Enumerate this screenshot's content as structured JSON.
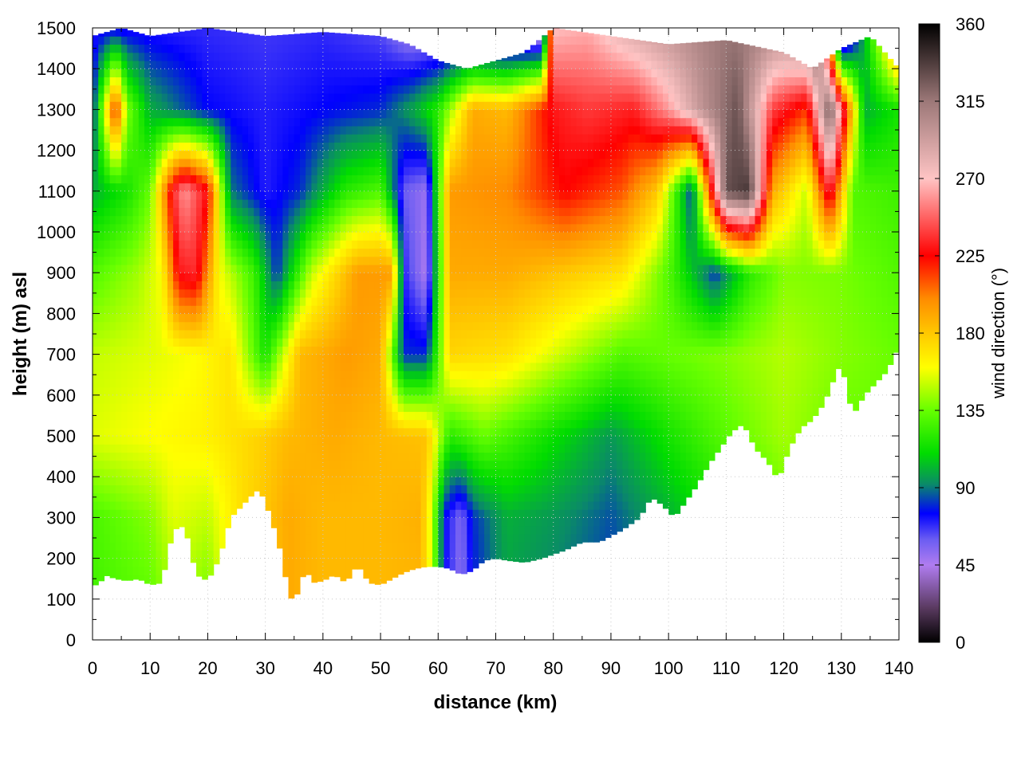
{
  "chart_data": {
    "type": "heatmap",
    "title": "",
    "xlabel": "distance (km)",
    "ylabel": "height (m) asl",
    "xlim": [
      0,
      140
    ],
    "ylim": [
      0,
      1500
    ],
    "xticks": [
      0,
      10,
      20,
      30,
      40,
      50,
      60,
      70,
      80,
      90,
      100,
      110,
      120,
      130,
      140
    ],
    "yticks": [
      0,
      100,
      200,
      300,
      400,
      500,
      600,
      700,
      800,
      900,
      1000,
      1100,
      1200,
      1300,
      1400,
      1500
    ],
    "grid": true,
    "colorbar": {
      "label": "wind direction (°)",
      "range": [
        0,
        360
      ],
      "ticks": [
        0,
        45,
        90,
        135,
        180,
        225,
        270,
        315,
        360
      ],
      "stops": [
        {
          "v": 0,
          "c": "#000000"
        },
        {
          "v": 20,
          "c": "#5a3a60"
        },
        {
          "v": 45,
          "c": "#b07cf0"
        },
        {
          "v": 60,
          "c": "#6a5cf2"
        },
        {
          "v": 75,
          "c": "#0000ff"
        },
        {
          "v": 92,
          "c": "#0a8a68"
        },
        {
          "v": 110,
          "c": "#00dc00"
        },
        {
          "v": 135,
          "c": "#66ff00"
        },
        {
          "v": 160,
          "c": "#ffff00"
        },
        {
          "v": 180,
          "c": "#ffc800"
        },
        {
          "v": 200,
          "c": "#ff8c00"
        },
        {
          "v": 225,
          "c": "#ff0000"
        },
        {
          "v": 270,
          "c": "#ffc4c4"
        },
        {
          "v": 315,
          "c": "#9c7878"
        },
        {
          "v": 360,
          "c": "#000000"
        }
      ]
    },
    "ground_height": [
      [
        0,
        140
      ],
      [
        1,
        130
      ],
      [
        2,
        160
      ],
      [
        4,
        150
      ],
      [
        6,
        145
      ],
      [
        8,
        150
      ],
      [
        10,
        135
      ],
      [
        12,
        140
      ],
      [
        14,
        270
      ],
      [
        16,
        280
      ],
      [
        18,
        160
      ],
      [
        20,
        145
      ],
      [
        22,
        200
      ],
      [
        24,
        300
      ],
      [
        26,
        330
      ],
      [
        28,
        360
      ],
      [
        29,
        370
      ],
      [
        31,
        300
      ],
      [
        33,
        200
      ],
      [
        34,
        110
      ],
      [
        35,
        95
      ],
      [
        36,
        130
      ],
      [
        37,
        180
      ],
      [
        38,
        140
      ],
      [
        40,
        145
      ],
      [
        42,
        160
      ],
      [
        44,
        140
      ],
      [
        46,
        185
      ],
      [
        48,
        140
      ],
      [
        50,
        135
      ],
      [
        52,
        150
      ],
      [
        54,
        165
      ],
      [
        56,
        175
      ],
      [
        58,
        180
      ],
      [
        60,
        180
      ],
      [
        62,
        175
      ],
      [
        64,
        160
      ],
      [
        66,
        170
      ],
      [
        68,
        195
      ],
      [
        70,
        200
      ],
      [
        72,
        195
      ],
      [
        75,
        190
      ],
      [
        78,
        200
      ],
      [
        80,
        210
      ],
      [
        82,
        220
      ],
      [
        85,
        240
      ],
      [
        88,
        240
      ],
      [
        92,
        270
      ],
      [
        95,
        300
      ],
      [
        97,
        350
      ],
      [
        99,
        330
      ],
      [
        101,
        300
      ],
      [
        103,
        340
      ],
      [
        105,
        380
      ],
      [
        107,
        430
      ],
      [
        109,
        470
      ],
      [
        111,
        510
      ],
      [
        113,
        530
      ],
      [
        115,
        470
      ],
      [
        117,
        440
      ],
      [
        118,
        420
      ],
      [
        119,
        390
      ],
      [
        121,
        470
      ],
      [
        123,
        520
      ],
      [
        125,
        540
      ],
      [
        127,
        580
      ],
      [
        129,
        650
      ],
      [
        130,
        680
      ],
      [
        131,
        610
      ],
      [
        132,
        550
      ],
      [
        134,
        600
      ],
      [
        136,
        630
      ],
      [
        138,
        660
      ],
      [
        140,
        720
      ]
    ],
    "top_height": [
      [
        0,
        1480
      ],
      [
        5,
        1500
      ],
      [
        10,
        1480
      ],
      [
        20,
        1500
      ],
      [
        30,
        1480
      ],
      [
        40,
        1490
      ],
      [
        50,
        1480
      ],
      [
        55,
        1460
      ],
      [
        60,
        1420
      ],
      [
        65,
        1400
      ],
      [
        70,
        1420
      ],
      [
        75,
        1440
      ],
      [
        80,
        1500
      ],
      [
        90,
        1480
      ],
      [
        100,
        1460
      ],
      [
        110,
        1470
      ],
      [
        120,
        1440
      ],
      [
        125,
        1400
      ],
      [
        130,
        1450
      ],
      [
        135,
        1480
      ],
      [
        140,
        1400
      ]
    ],
    "layers": [
      {
        "h": 0,
        "wd": [
          [
            0,
            125
          ],
          [
            10,
            130
          ],
          [
            12,
            135
          ],
          [
            16,
            145
          ],
          [
            20,
            130
          ],
          [
            24,
            170
          ],
          [
            30,
            175
          ],
          [
            34,
            190
          ],
          [
            40,
            185
          ],
          [
            50,
            185
          ],
          [
            57,
            185
          ],
          [
            59,
            150
          ],
          [
            61,
            75
          ],
          [
            64,
            50
          ],
          [
            66,
            75
          ],
          [
            72,
            95
          ],
          [
            80,
            88
          ],
          [
            90,
            80
          ],
          [
            100,
            92
          ],
          [
            110,
            110
          ],
          [
            120,
            130
          ],
          [
            130,
            120
          ],
          [
            140,
            130
          ]
        ]
      },
      {
        "h": 300,
        "wd": [
          [
            0,
            128
          ],
          [
            10,
            140
          ],
          [
            14,
            155
          ],
          [
            20,
            150
          ],
          [
            26,
            172
          ],
          [
            34,
            190
          ],
          [
            40,
            185
          ],
          [
            50,
            185
          ],
          [
            57,
            188
          ],
          [
            59,
            150
          ],
          [
            61,
            75
          ],
          [
            64,
            55
          ],
          [
            66,
            80
          ],
          [
            72,
            100
          ],
          [
            80,
            95
          ],
          [
            90,
            85
          ],
          [
            100,
            100
          ],
          [
            110,
            118
          ],
          [
            120,
            135
          ],
          [
            130,
            125
          ],
          [
            140,
            130
          ]
        ]
      },
      {
        "h": 500,
        "wd": [
          [
            0,
            155
          ],
          [
            10,
            160
          ],
          [
            20,
            165
          ],
          [
            28,
            175
          ],
          [
            34,
            185
          ],
          [
            42,
            190
          ],
          [
            50,
            185
          ],
          [
            58,
            182
          ],
          [
            62,
            120
          ],
          [
            68,
            135
          ],
          [
            80,
            112
          ],
          [
            90,
            95
          ],
          [
            100,
            115
          ],
          [
            110,
            132
          ],
          [
            120,
            145
          ],
          [
            130,
            135
          ],
          [
            140,
            135
          ]
        ]
      },
      {
        "h": 700,
        "wd": [
          [
            0,
            150
          ],
          [
            10,
            155
          ],
          [
            18,
            160
          ],
          [
            24,
            170
          ],
          [
            30,
            115
          ],
          [
            36,
            185
          ],
          [
            44,
            195
          ],
          [
            50,
            190
          ],
          [
            54,
            80
          ],
          [
            58,
            80
          ],
          [
            62,
            175
          ],
          [
            72,
            170
          ],
          [
            82,
            150
          ],
          [
            92,
            130
          ],
          [
            100,
            135
          ],
          [
            110,
            140
          ],
          [
            120,
            148
          ],
          [
            130,
            140
          ],
          [
            140,
            135
          ]
        ]
      },
      {
        "h": 900,
        "wd": [
          [
            0,
            130
          ],
          [
            8,
            145
          ],
          [
            12,
            160
          ],
          [
            15,
            230
          ],
          [
            18,
            235
          ],
          [
            22,
            160
          ],
          [
            28,
            125
          ],
          [
            32,
            80
          ],
          [
            38,
            150
          ],
          [
            46,
            195
          ],
          [
            52,
            195
          ],
          [
            54,
            70
          ],
          [
            58,
            45
          ],
          [
            62,
            190
          ],
          [
            72,
            190
          ],
          [
            82,
            180
          ],
          [
            92,
            170
          ],
          [
            100,
            130
          ],
          [
            108,
            80
          ],
          [
            114,
            120
          ],
          [
            120,
            140
          ],
          [
            130,
            138
          ],
          [
            140,
            130
          ]
        ]
      },
      {
        "h": 1100,
        "wd": [
          [
            0,
            100
          ],
          [
            6,
            115
          ],
          [
            10,
            135
          ],
          [
            14,
            235
          ],
          [
            16,
            260
          ],
          [
            20,
            228
          ],
          [
            24,
            90
          ],
          [
            30,
            70
          ],
          [
            36,
            80
          ],
          [
            44,
            120
          ],
          [
            50,
            130
          ],
          [
            54,
            60
          ],
          [
            58,
            50
          ],
          [
            62,
            195
          ],
          [
            72,
            200
          ],
          [
            82,
            225
          ],
          [
            92,
            210
          ],
          [
            98,
            180
          ],
          [
            104,
            80
          ],
          [
            110,
            330
          ],
          [
            114,
            340
          ],
          [
            118,
            190
          ],
          [
            124,
            150
          ],
          [
            128,
            240
          ],
          [
            132,
            130
          ],
          [
            140,
            125
          ]
        ]
      },
      {
        "h": 1300,
        "wd": [
          [
            0,
            75
          ],
          [
            4,
            225
          ],
          [
            6,
            140
          ],
          [
            10,
            100
          ],
          [
            20,
            75
          ],
          [
            30,
            70
          ],
          [
            40,
            75
          ],
          [
            50,
            80
          ],
          [
            56,
            100
          ],
          [
            60,
            120
          ],
          [
            66,
            190
          ],
          [
            72,
            185
          ],
          [
            80,
            230
          ],
          [
            86,
            238
          ],
          [
            94,
            232
          ],
          [
            100,
            260
          ],
          [
            106,
            300
          ],
          [
            112,
            330
          ],
          [
            118,
            240
          ],
          [
            124,
            215
          ],
          [
            128,
            330
          ],
          [
            134,
            100
          ],
          [
            140,
            115
          ]
        ]
      },
      {
        "h": 1500,
        "wd": [
          [
            0,
            70
          ],
          [
            10,
            70
          ],
          [
            20,
            68
          ],
          [
            30,
            66
          ],
          [
            40,
            68
          ],
          [
            50,
            62
          ],
          [
            55,
            45
          ],
          [
            60,
            40
          ],
          [
            65,
            30
          ],
          [
            70,
            25
          ],
          [
            78,
            20
          ],
          [
            80,
            270
          ],
          [
            86,
            265
          ],
          [
            94,
            290
          ],
          [
            100,
            300
          ],
          [
            110,
            315
          ],
          [
            120,
            310
          ],
          [
            126,
            340
          ],
          [
            130,
            5
          ],
          [
            134,
            100
          ],
          [
            140,
            225
          ]
        ]
      }
    ]
  }
}
